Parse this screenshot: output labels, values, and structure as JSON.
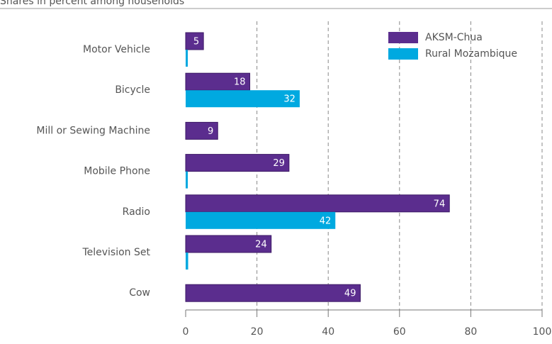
{
  "chart_data": {
    "type": "bar",
    "orientation": "horizontal",
    "subtitle": "Shares in percent among households",
    "categories": [
      "Motor Vehicle",
      "Bicycle",
      "Mill or Sewing Machine",
      "Mobile Phone",
      "Radio",
      "Television Set",
      "Cow"
    ],
    "series": [
      {
        "name": "AKSM-Chua",
        "color": "#5b2d8e",
        "values": [
          5,
          18,
          9,
          29,
          74,
          24,
          49
        ],
        "value_labels": [
          "5",
          "18",
          "9",
          "29",
          "74",
          "24",
          "49"
        ]
      },
      {
        "name": "Rural Mozambique",
        "color": "#00a9e0",
        "values": [
          0.6,
          32,
          null,
          0.6,
          42,
          0.7,
          null
        ],
        "value_labels": [
          null,
          "32",
          null,
          null,
          "42",
          null,
          null
        ]
      }
    ],
    "xlim": [
      0,
      100
    ],
    "xticks": [
      0,
      20,
      40,
      60,
      80,
      100
    ],
    "grid": true,
    "legend": "upper right"
  }
}
